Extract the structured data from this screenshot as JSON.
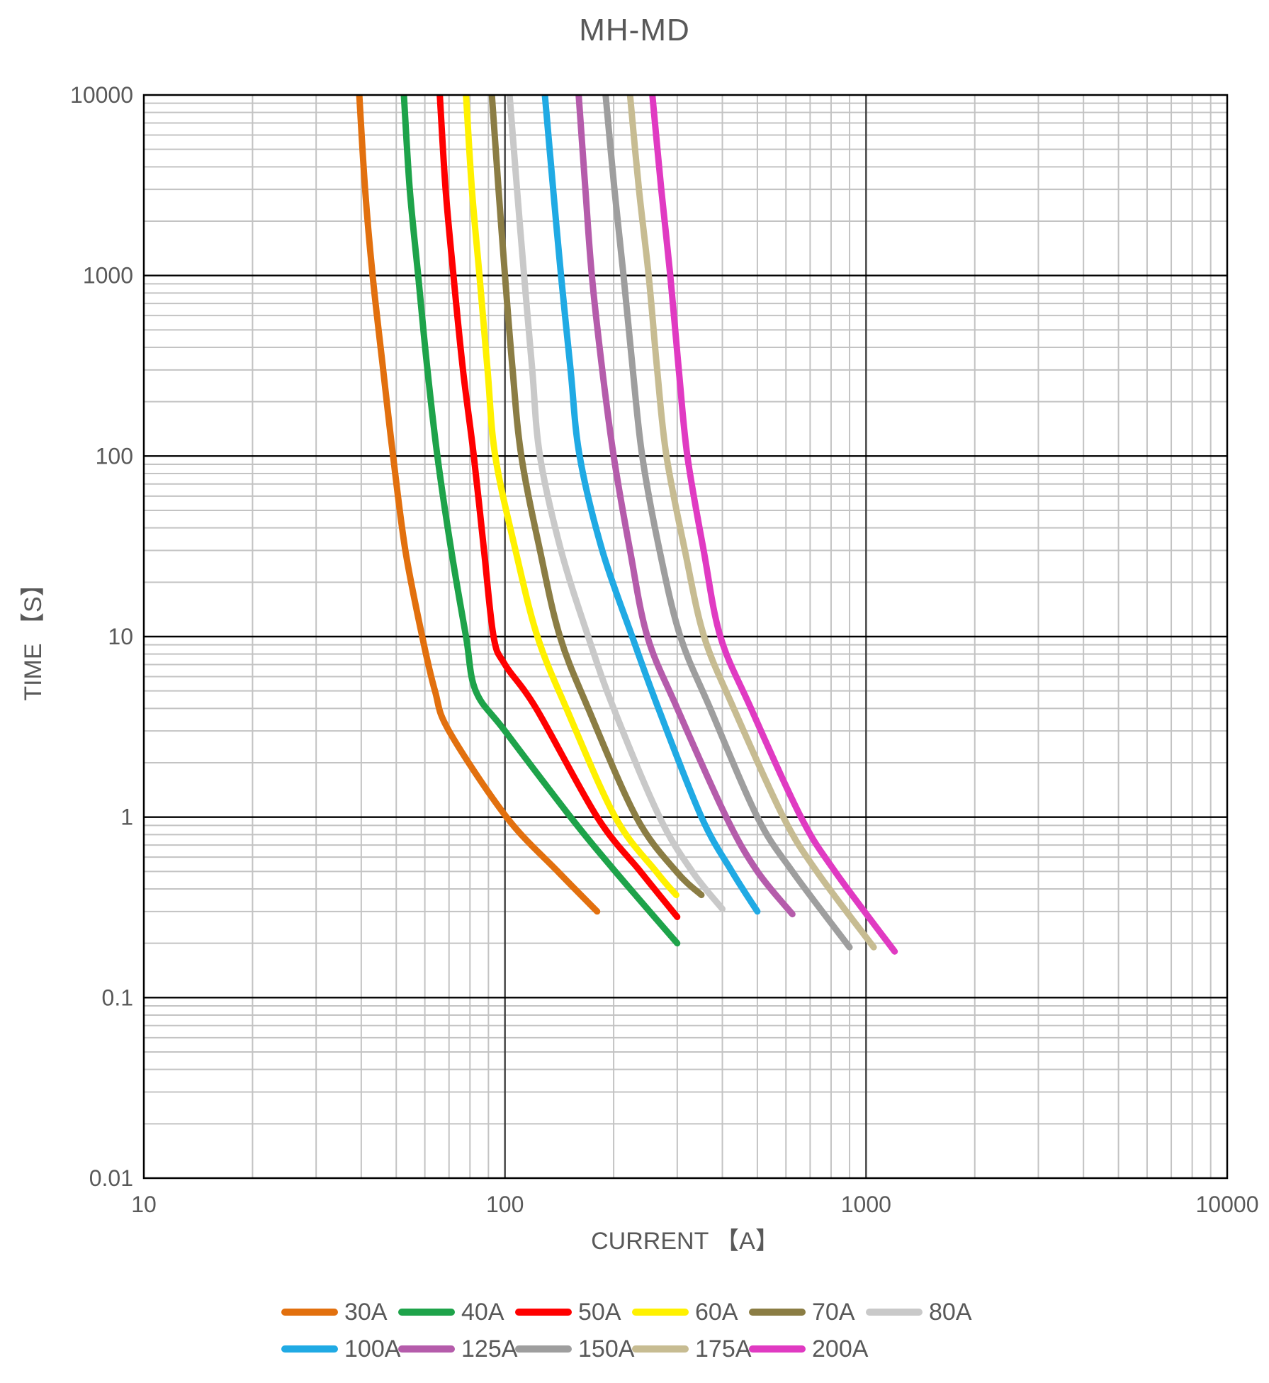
{
  "title": "MH-MD",
  "axes": {
    "x": {
      "label": "CURRENT 【A】",
      "scale": "log",
      "min": 10,
      "max": 10000,
      "ticks": [
        "10",
        "100",
        "1000",
        "10000"
      ]
    },
    "y": {
      "label": "TIME 【S】",
      "scale": "log",
      "min": 0.01,
      "max": 10000,
      "ticks": [
        "10000",
        "1000",
        "100",
        "10",
        "1",
        "0.1",
        "0.01"
      ]
    }
  },
  "styles": {
    "text_color": "#595959",
    "grid_minor_color": "#C3C3C3",
    "grid_major_h_color": "#000000",
    "grid_major_v_color": "#404040",
    "border_color": "#000000",
    "background": "#FFFFFF"
  },
  "chart_data": {
    "type": "line",
    "title": "MH-MD",
    "xlabel": "CURRENT 【A】",
    "ylabel": "TIME 【S】",
    "x_range": [
      10,
      10000
    ],
    "y_range": [
      0.01,
      10000
    ],
    "x_scale": "log",
    "y_scale": "log",
    "grid": true,
    "legend_position": "bottom",
    "legend_rows": [
      [
        "30A",
        "40A",
        "50A",
        "60A",
        "70A",
        "80A"
      ],
      [
        "100A",
        "125A",
        "150A",
        "175A",
        "200A"
      ]
    ],
    "point_format": "[current_A, time_s]",
    "series": [
      {
        "name": "30A",
        "color": "#E2700E",
        "points": [
          [
            39.5,
            10000
          ],
          [
            41,
            3000
          ],
          [
            43,
            1000
          ],
          [
            46,
            300
          ],
          [
            49,
            100
          ],
          [
            53,
            30
          ],
          [
            59,
            10
          ],
          [
            64,
            5
          ],
          [
            70,
            3
          ],
          [
            101,
            1
          ],
          [
            140,
            0.5
          ],
          [
            180,
            0.3
          ]
        ]
      },
      {
        "name": "40A",
        "color": "#1EA34A",
        "points": [
          [
            52.5,
            10000
          ],
          [
            54.5,
            3000
          ],
          [
            57.5,
            1000
          ],
          [
            61,
            300
          ],
          [
            65,
            100
          ],
          [
            71,
            30
          ],
          [
            78,
            10
          ],
          [
            83,
            5
          ],
          [
            100,
            3
          ],
          [
            152,
            1
          ],
          [
            202,
            0.5
          ],
          [
            300,
            0.2
          ]
        ]
      },
      {
        "name": "50A",
        "color": "#FF0000",
        "points": [
          [
            66,
            10000
          ],
          [
            68.5,
            3000
          ],
          [
            72,
            1000
          ],
          [
            76.5,
            300
          ],
          [
            82,
            100
          ],
          [
            87.5,
            30
          ],
          [
            93,
            10
          ],
          [
            100,
            7
          ],
          [
            122,
            4
          ],
          [
            180,
            1
          ],
          [
            237,
            0.5
          ],
          [
            300,
            0.28
          ]
        ]
      },
      {
        "name": "60A",
        "color": "#FFF100",
        "points": [
          [
            78,
            10000
          ],
          [
            81,
            3000
          ],
          [
            85,
            1000
          ],
          [
            89.5,
            300
          ],
          [
            94,
            100
          ],
          [
            107,
            30
          ],
          [
            123,
            10
          ],
          [
            148,
            4
          ],
          [
            202,
            1
          ],
          [
            262,
            0.5
          ],
          [
            298,
            0.37
          ]
        ]
      },
      {
        "name": "70A",
        "color": "#8B7D44",
        "points": [
          [
            92,
            10000
          ],
          [
            96,
            3000
          ],
          [
            100,
            1000
          ],
          [
            105,
            300
          ],
          [
            111,
            100
          ],
          [
            125,
            30
          ],
          [
            142,
            10
          ],
          [
            170,
            4
          ],
          [
            231,
            1
          ],
          [
            298,
            0.5
          ],
          [
            350,
            0.37
          ]
        ]
      },
      {
        "name": "80A",
        "color": "#C9C9C9",
        "points": [
          [
            103,
            10000
          ],
          [
            108,
            3000
          ],
          [
            113,
            1000
          ],
          [
            119,
            300
          ],
          [
            125,
            100
          ],
          [
            143,
            30
          ],
          [
            170,
            10
          ],
          [
            200,
            4
          ],
          [
            268,
            1
          ],
          [
            330,
            0.5
          ],
          [
            400,
            0.31
          ]
        ]
      },
      {
        "name": "100A",
        "color": "#20AAE4",
        "points": [
          [
            129,
            10000
          ],
          [
            136,
            3000
          ],
          [
            143,
            1000
          ],
          [
            152,
            300
          ],
          [
            161,
            100
          ],
          [
            186,
            30
          ],
          [
            225,
            10
          ],
          [
            266,
            4
          ],
          [
            350,
            1
          ],
          [
            425,
            0.5
          ],
          [
            500,
            0.3
          ]
        ]
      },
      {
        "name": "125A",
        "color": "#B55CAB",
        "points": [
          [
            160,
            10000
          ],
          [
            167,
            3000
          ],
          [
            174,
            1000
          ],
          [
            186,
            300
          ],
          [
            200,
            100
          ],
          [
            222,
            30
          ],
          [
            248,
            10
          ],
          [
            300,
            4
          ],
          [
            410,
            1
          ],
          [
            500,
            0.5
          ],
          [
            625,
            0.29
          ]
        ]
      },
      {
        "name": "150A",
        "color": "#9E9E9E",
        "points": [
          [
            190,
            10000
          ],
          [
            201,
            3000
          ],
          [
            213,
            1000
          ],
          [
            226,
            300
          ],
          [
            240,
            100
          ],
          [
            268,
            30
          ],
          [
            306,
            10
          ],
          [
            370,
            4
          ],
          [
            500,
            1
          ],
          [
            625,
            0.5
          ],
          [
            900,
            0.19
          ]
        ]
      },
      {
        "name": "175A",
        "color": "#C7BC92",
        "points": [
          [
            222,
            10000
          ],
          [
            235,
            3000
          ],
          [
            250,
            1000
          ],
          [
            264,
            300
          ],
          [
            280,
            100
          ],
          [
            315,
            30
          ],
          [
            356,
            10
          ],
          [
            430,
            4
          ],
          [
            590,
            1
          ],
          [
            730,
            0.5
          ],
          [
            1050,
            0.19
          ]
        ]
      },
      {
        "name": "200A",
        "color": "#E03AC2",
        "points": [
          [
            256,
            10000
          ],
          [
            271,
            3000
          ],
          [
            287,
            1000
          ],
          [
            303,
            300
          ],
          [
            320,
            100
          ],
          [
            355,
            30
          ],
          [
            395,
            10
          ],
          [
            480,
            4
          ],
          [
            660,
            1
          ],
          [
            820,
            0.5
          ],
          [
            1200,
            0.18
          ]
        ]
      }
    ]
  }
}
